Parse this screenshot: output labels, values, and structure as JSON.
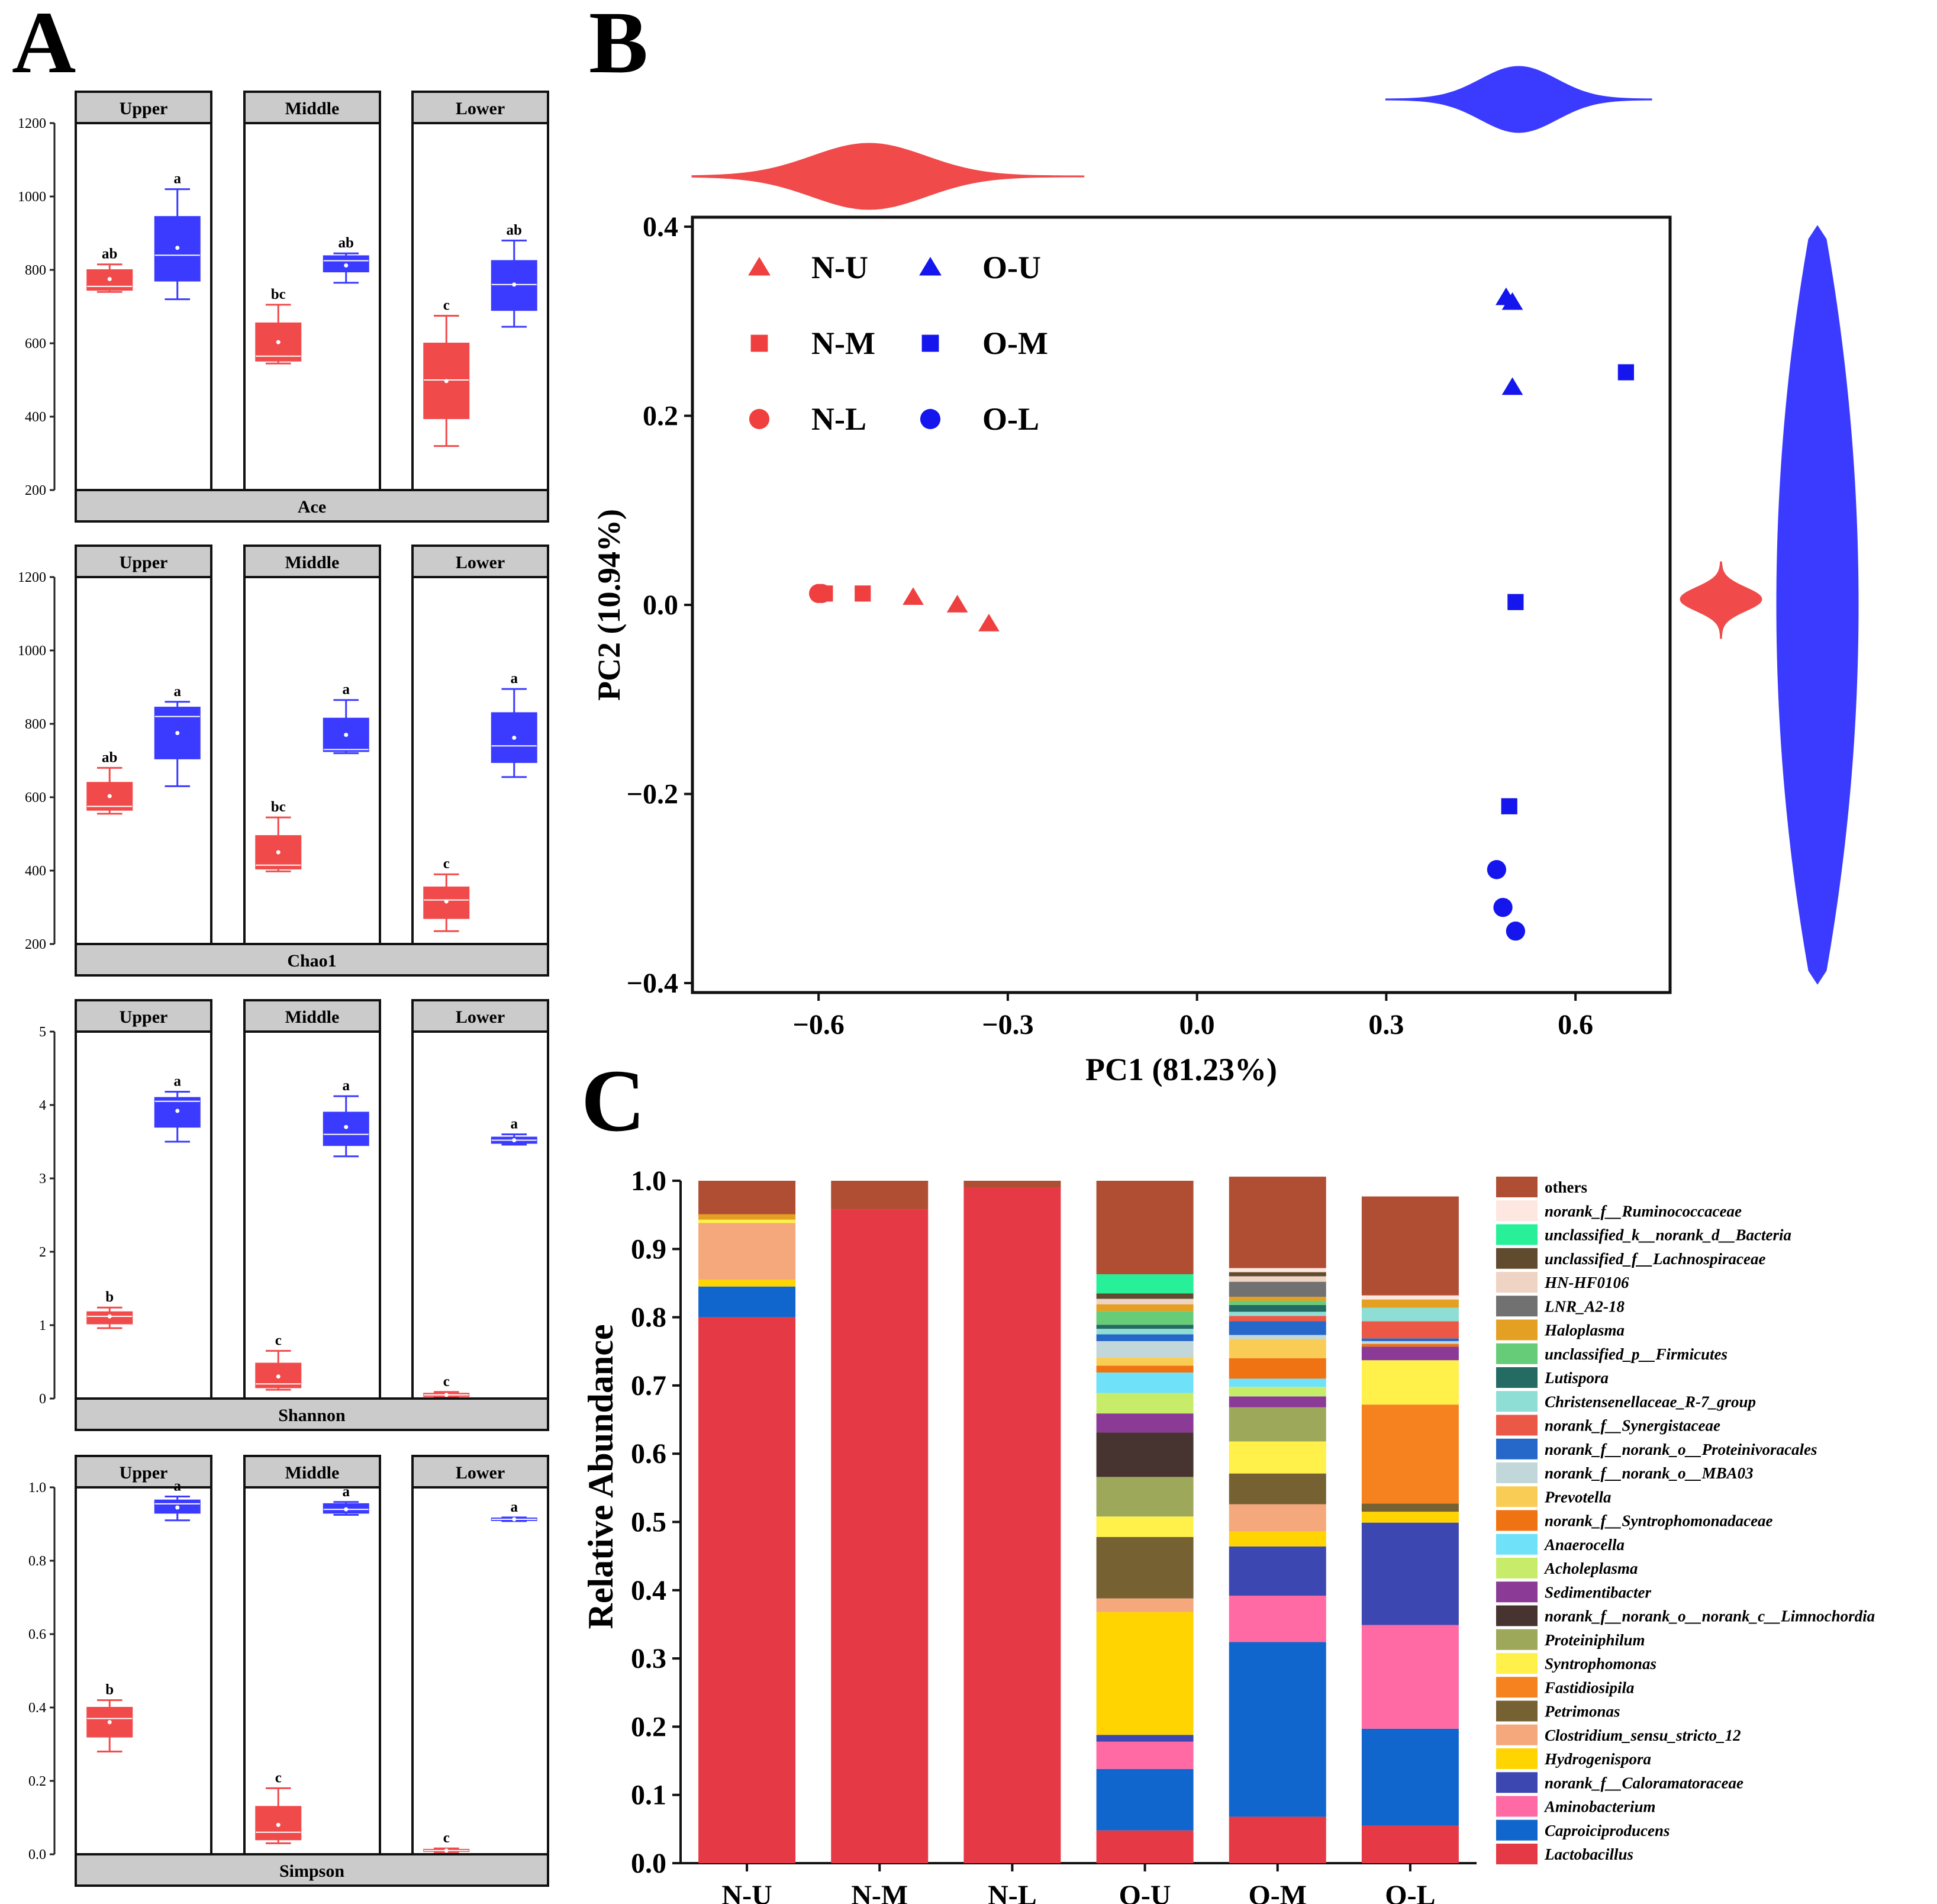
{
  "panel_labels": {
    "a": "A",
    "b": "B",
    "c": "C"
  },
  "colors": {
    "n": "#f04a4a",
    "o": "#3b3bff",
    "n_point": "#ef3f3f",
    "o_point": "#1515ee",
    "strip": "#cbcbcb"
  },
  "chart_data": [
    {
      "type": "boxplot",
      "id": "ace",
      "title": "Ace",
      "facets": [
        "Upper",
        "Middle",
        "Lower"
      ],
      "ylim": [
        200,
        1200
      ],
      "yticks": [
        200,
        400,
        600,
        800,
        1000,
        1200
      ],
      "ytick_labels": [
        "200",
        "400",
        "600",
        "800",
        "1000",
        "1200"
      ],
      "groups": [
        {
          "facet": "Upper",
          "series": "N",
          "min": 740,
          "q1": 745,
          "median": 755,
          "q3": 800,
          "max": 815,
          "mean": 775,
          "letter": "ab"
        },
        {
          "facet": "Upper",
          "series": "O",
          "min": 720,
          "q1": 770,
          "median": 840,
          "q3": 945,
          "max": 1020,
          "mean": 860,
          "letter": "a"
        },
        {
          "facet": "Middle",
          "series": "N",
          "min": 545,
          "q1": 552,
          "median": 565,
          "q3": 655,
          "max": 705,
          "mean": 603,
          "letter": "bc"
        },
        {
          "facet": "Middle",
          "series": "O",
          "min": 765,
          "q1": 795,
          "median": 825,
          "q3": 838,
          "max": 845,
          "mean": 812,
          "letter": "ab"
        },
        {
          "facet": "Lower",
          "series": "N",
          "min": 320,
          "q1": 395,
          "median": 500,
          "q3": 600,
          "max": 675,
          "mean": 497,
          "letter": "c"
        },
        {
          "facet": "Lower",
          "series": "O",
          "min": 645,
          "q1": 690,
          "median": 760,
          "q3": 825,
          "max": 880,
          "mean": 760,
          "letter": "ab"
        }
      ]
    },
    {
      "type": "boxplot",
      "id": "chao1",
      "title": "Chao1",
      "facets": [
        "Upper",
        "Middle",
        "Lower"
      ],
      "ylim": [
        200,
        1200
      ],
      "yticks": [
        200,
        400,
        600,
        800,
        1000,
        1200
      ],
      "ytick_labels": [
        "200",
        "400",
        "600",
        "800",
        "1000",
        "1200"
      ],
      "groups": [
        {
          "facet": "Upper",
          "series": "N",
          "min": 555,
          "q1": 565,
          "median": 575,
          "q3": 640,
          "max": 680,
          "mean": 603,
          "letter": "ab"
        },
        {
          "facet": "Upper",
          "series": "O",
          "min": 630,
          "q1": 705,
          "median": 820,
          "q3": 845,
          "max": 860,
          "mean": 775,
          "letter": "a"
        },
        {
          "facet": "Middle",
          "series": "N",
          "min": 398,
          "q1": 405,
          "median": 415,
          "q3": 495,
          "max": 545,
          "mean": 450,
          "letter": "bc"
        },
        {
          "facet": "Middle",
          "series": "O",
          "min": 720,
          "q1": 725,
          "median": 730,
          "q3": 815,
          "max": 865,
          "mean": 770,
          "letter": "a"
        },
        {
          "facet": "Lower",
          "series": "N",
          "min": 235,
          "q1": 270,
          "median": 320,
          "q3": 355,
          "max": 390,
          "mean": 316,
          "letter": "c"
        },
        {
          "facet": "Lower",
          "series": "O",
          "min": 655,
          "q1": 695,
          "median": 740,
          "q3": 830,
          "max": 895,
          "mean": 762,
          "letter": "a"
        }
      ]
    },
    {
      "type": "boxplot",
      "id": "shannon",
      "title": "Shannon",
      "facets": [
        "Upper",
        "Middle",
        "Lower"
      ],
      "ylim": [
        0,
        5
      ],
      "yticks": [
        0,
        1,
        2,
        3,
        4,
        5
      ],
      "ytick_labels": [
        "0",
        "1",
        "2",
        "3",
        "4",
        "5"
      ],
      "groups": [
        {
          "facet": "Upper",
          "series": "N",
          "min": 0.96,
          "q1": 1.02,
          "median": 1.12,
          "q3": 1.18,
          "max": 1.24,
          "mean": 1.12,
          "letter": "b"
        },
        {
          "facet": "Upper",
          "series": "O",
          "min": 3.5,
          "q1": 3.7,
          "median": 4.05,
          "q3": 4.1,
          "max": 4.18,
          "mean": 3.92,
          "letter": "a"
        },
        {
          "facet": "Middle",
          "series": "N",
          "min": 0.12,
          "q1": 0.15,
          "median": 0.2,
          "q3": 0.48,
          "max": 0.65,
          "mean": 0.3,
          "letter": "c"
        },
        {
          "facet": "Middle",
          "series": "O",
          "min": 3.3,
          "q1": 3.45,
          "median": 3.6,
          "q3": 3.9,
          "max": 4.12,
          "mean": 3.7,
          "letter": "a"
        },
        {
          "facet": "Lower",
          "series": "N",
          "min": 0.02,
          "q1": 0.03,
          "median": 0.05,
          "q3": 0.07,
          "max": 0.09,
          "mean": 0.05,
          "letter": "c"
        },
        {
          "facet": "Lower",
          "series": "O",
          "min": 3.46,
          "q1": 3.48,
          "median": 3.52,
          "q3": 3.56,
          "max": 3.6,
          "mean": 3.52,
          "letter": "a"
        }
      ]
    },
    {
      "type": "boxplot",
      "id": "simpson",
      "title": "Simpson",
      "facets": [
        "Upper",
        "Middle",
        "Lower"
      ],
      "ylim": [
        0,
        1
      ],
      "yticks": [
        0,
        0.2,
        0.4,
        0.6,
        0.8,
        1.0
      ],
      "ytick_labels": [
        "0.0",
        "0.2",
        "0.4",
        "0.6",
        "0.8",
        "1.0"
      ],
      "groups": [
        {
          "facet": "Upper",
          "series": "N",
          "min": 0.28,
          "q1": 0.32,
          "median": 0.37,
          "q3": 0.4,
          "max": 0.42,
          "mean": 0.36,
          "letter": "b"
        },
        {
          "facet": "Upper",
          "series": "O",
          "min": 0.91,
          "q1": 0.93,
          "median": 0.955,
          "q3": 0.965,
          "max": 0.975,
          "mean": 0.945,
          "letter": "a"
        },
        {
          "facet": "Middle",
          "series": "N",
          "min": 0.03,
          "q1": 0.04,
          "median": 0.06,
          "q3": 0.13,
          "max": 0.18,
          "mean": 0.08,
          "letter": "c"
        },
        {
          "facet": "Middle",
          "series": "O",
          "min": 0.925,
          "q1": 0.93,
          "median": 0.94,
          "q3": 0.955,
          "max": 0.96,
          "mean": 0.94,
          "letter": "a"
        },
        {
          "facet": "Lower",
          "series": "N",
          "min": 0.006,
          "q1": 0.008,
          "median": 0.01,
          "q3": 0.013,
          "max": 0.016,
          "mean": 0.01,
          "letter": "c"
        },
        {
          "facet": "Lower",
          "series": "O",
          "min": 0.908,
          "q1": 0.91,
          "median": 0.913,
          "q3": 0.916,
          "max": 0.918,
          "mean": 0.913,
          "letter": "a"
        }
      ]
    },
    {
      "type": "scatter",
      "id": "pca",
      "xlabel": "PC1 (81.23%)",
      "ylabel": "PC2 (10.94%)",
      "xlim": [
        -0.8,
        0.75
      ],
      "ylim": [
        -0.41,
        0.41
      ],
      "xticks": [
        -0.6,
        -0.3,
        0.0,
        0.3,
        0.6
      ],
      "xtick_labels": [
        "−0.6",
        "−0.3",
        "0.0",
        "0.3",
        "0.6"
      ],
      "yticks": [
        -0.4,
        -0.2,
        0.0,
        0.2,
        0.4
      ],
      "ytick_labels": [
        "−0.4",
        "−0.2",
        "0.0",
        "0.2",
        "0.4"
      ],
      "legend": [
        {
          "label": "N-U",
          "group": "N",
          "shape": "triangle"
        },
        {
          "label": "O-U",
          "group": "O",
          "shape": "triangle"
        },
        {
          "label": "N-M",
          "group": "N",
          "shape": "square"
        },
        {
          "label": "O-M",
          "group": "O",
          "shape": "square"
        },
        {
          "label": "N-L",
          "group": "N",
          "shape": "circle"
        },
        {
          "label": "O-L",
          "group": "O",
          "shape": "circle"
        }
      ],
      "points": [
        {
          "series": "N-U",
          "x": -0.45,
          "y": 0.008
        },
        {
          "series": "N-U",
          "x": -0.38,
          "y": 0.0
        },
        {
          "series": "N-U",
          "x": -0.33,
          "y": -0.02
        },
        {
          "series": "N-M",
          "x": -0.59,
          "y": 0.012
        },
        {
          "series": "N-M",
          "x": -0.53,
          "y": 0.012
        },
        {
          "series": "N-L",
          "x": -0.6,
          "y": 0.012
        },
        {
          "series": "N-L",
          "x": -0.595,
          "y": 0.012
        },
        {
          "series": "O-U",
          "x": 0.49,
          "y": 0.325
        },
        {
          "series": "O-U",
          "x": 0.5,
          "y": 0.32
        },
        {
          "series": "O-U",
          "x": 0.5,
          "y": 0.23
        },
        {
          "series": "O-M",
          "x": 0.68,
          "y": 0.246
        },
        {
          "series": "O-M",
          "x": 0.505,
          "y": 0.003
        },
        {
          "series": "O-M",
          "x": 0.495,
          "y": -0.213
        },
        {
          "series": "O-L",
          "x": 0.475,
          "y": -0.28
        },
        {
          "series": "O-L",
          "x": 0.485,
          "y": -0.32
        },
        {
          "series": "O-L",
          "x": 0.505,
          "y": -0.345
        }
      ],
      "marginals": {
        "pc1_n": {
          "mode": -0.52,
          "spread": 0.09,
          "range": [
            -0.8,
            -0.18
          ]
        },
        "pc1_o": {
          "mode": 0.51,
          "spread": 0.06,
          "range": [
            0.3,
            0.72
          ]
        },
        "pc2_n": {
          "mode": 0.006,
          "spread": 0.012,
          "range": [
            -0.035,
            0.045
          ]
        },
        "pc2_o": {
          "mode": 0.0,
          "spread": 0.25,
          "range": [
            -0.4,
            0.4
          ]
        }
      }
    },
    {
      "type": "stacked_bar",
      "id": "community",
      "ylabel": "Relative Abundance",
      "ylim": [
        0,
        1
      ],
      "yticks": [
        0,
        0.1,
        0.2,
        0.3,
        0.4,
        0.5,
        0.6,
        0.7,
        0.8,
        0.9,
        1.0
      ],
      "ytick_labels": [
        "0.0",
        "0.1",
        "0.2",
        "0.3",
        "0.4",
        "0.5",
        "0.6",
        "0.7",
        "0.8",
        "0.9",
        "1.0"
      ],
      "categories": [
        "N-U",
        "N-M",
        "N-L",
        "O-U",
        "O-M",
        "O-L"
      ],
      "series": [
        {
          "name": "Lactobacillus",
          "color": "#e63946",
          "values": [
            0.8,
            0.958,
            0.99,
            0.048,
            0.068,
            0.055
          ]
        },
        {
          "name": "Caproiciproducens",
          "color": "#1066cc",
          "values": [
            0.045,
            0.0,
            0.0,
            0.09,
            0.256,
            0.142
          ]
        },
        {
          "name": "Aminobacterium",
          "color": "#ff69a4",
          "values": [
            0.0,
            0.0,
            0.0,
            0.04,
            0.068,
            0.152
          ]
        },
        {
          "name": "norank_f__Caloramatoraceae",
          "color": "#3d47b2",
          "values": [
            0.0,
            0.0,
            0.0,
            0.01,
            0.072,
            0.15
          ]
        },
        {
          "name": "Hydrogenispora",
          "color": "#ffd400",
          "values": [
            0.01,
            0.0,
            0.0,
            0.18,
            0.022,
            0.016
          ]
        },
        {
          "name": "Clostridium_sensu_stricto_12",
          "color": "#f4a87c",
          "values": [
            0.083,
            0.0,
            0.0,
            0.02,
            0.04,
            0.0
          ]
        },
        {
          "name": "Petrimonas",
          "color": "#756131",
          "values": [
            0.0,
            0.0,
            0.0,
            0.09,
            0.045,
            0.012
          ]
        },
        {
          "name": "Fastidiosipila",
          "color": "#f5821f",
          "values": [
            0.0,
            0.0,
            0.0,
            0.0,
            0.0,
            0.145
          ]
        },
        {
          "name": "Syntrophomonas",
          "color": "#fff04a",
          "values": [
            0.005,
            0.0,
            0.0,
            0.03,
            0.047,
            0.065
          ]
        },
        {
          "name": "Proteiniphilum",
          "color": "#9ea85a",
          "values": [
            0.0,
            0.0,
            0.0,
            0.058,
            0.05,
            0.0
          ]
        },
        {
          "name": "norank_f__norank_o__norank_c__Limnochordia",
          "color": "#473430",
          "values": [
            0.0,
            0.0,
            0.0,
            0.065,
            0.0,
            0.0
          ]
        },
        {
          "name": "Sedimentibacter",
          "color": "#8b3a96",
          "values": [
            0.0,
            0.0,
            0.0,
            0.028,
            0.016,
            0.02
          ]
        },
        {
          "name": "Acholeplasma",
          "color": "#c7ec6a",
          "values": [
            0.0,
            0.0,
            0.0,
            0.03,
            0.014,
            0.0
          ]
        },
        {
          "name": "Anaerocella",
          "color": "#6fe1f8",
          "values": [
            0.0,
            0.0,
            0.0,
            0.03,
            0.012,
            0.0
          ]
        },
        {
          "name": "norank_f__Syntrophomonadaceae",
          "color": "#f07313",
          "values": [
            0.0,
            0.0,
            0.0,
            0.01,
            0.03,
            0.004
          ]
        },
        {
          "name": "Prevotella",
          "color": "#f9cd55",
          "values": [
            0.0,
            0.0,
            0.0,
            0.012,
            0.028,
            0.0
          ]
        },
        {
          "name": "norank_f__norank_o__MBA03",
          "color": "#c2d7d9",
          "values": [
            0.0,
            0.0,
            0.0,
            0.024,
            0.006,
            0.004
          ]
        },
        {
          "name": "norank_f__norank_o__Proteinivoracales",
          "color": "#2568c9",
          "values": [
            0.0,
            0.0,
            0.0,
            0.01,
            0.02,
            0.004
          ]
        },
        {
          "name": "norank_f__Synergistaceae",
          "color": "#ec5846",
          "values": [
            0.0,
            0.0,
            0.0,
            0.0,
            0.008,
            0.025
          ]
        },
        {
          "name": "Christensenellaceae_R-7_group",
          "color": "#8fded5",
          "values": [
            0.0,
            0.0,
            0.0,
            0.008,
            0.006,
            0.02
          ]
        },
        {
          "name": "Lutispora",
          "color": "#236b63",
          "values": [
            0.0,
            0.0,
            0.0,
            0.006,
            0.01,
            0.0
          ]
        },
        {
          "name": "unclassified_p__Firmicutes",
          "color": "#66cc77",
          "values": [
            0.0,
            0.0,
            0.0,
            0.02,
            0.006,
            0.0
          ]
        },
        {
          "name": "Haloplasma",
          "color": "#e3a023",
          "values": [
            0.008,
            0.0,
            0.0,
            0.01,
            0.006,
            0.012
          ]
        },
        {
          "name": "LNR_A2-18",
          "color": "#717171",
          "values": [
            0.0,
            0.0,
            0.0,
            0.0,
            0.022,
            0.0
          ]
        },
        {
          "name": "HN-HF0106",
          "color": "#efd3c3",
          "values": [
            0.0,
            0.0,
            0.0,
            0.008,
            0.008,
            0.0
          ]
        },
        {
          "name": "unclassified_f__Lachnospiraceae",
          "color": "#604b2f",
          "values": [
            0.0,
            0.0,
            0.0,
            0.008,
            0.006,
            0.0
          ]
        },
        {
          "name": "unclassified_k__norank_d__Bacteria",
          "color": "#27f098",
          "values": [
            0.0,
            0.0,
            0.0,
            0.028,
            0.0,
            0.0
          ]
        },
        {
          "name": "norank_f__Ruminococcaceae",
          "color": "#fde7e0",
          "values": [
            0.0,
            0.0,
            0.0,
            0.0,
            0.006,
            0.006
          ]
        },
        {
          "name": "others",
          "color": "#b04e34",
          "values": [
            0.049,
            0.042,
            0.01,
            0.137,
            0.134,
            0.145
          ]
        }
      ]
    }
  ]
}
